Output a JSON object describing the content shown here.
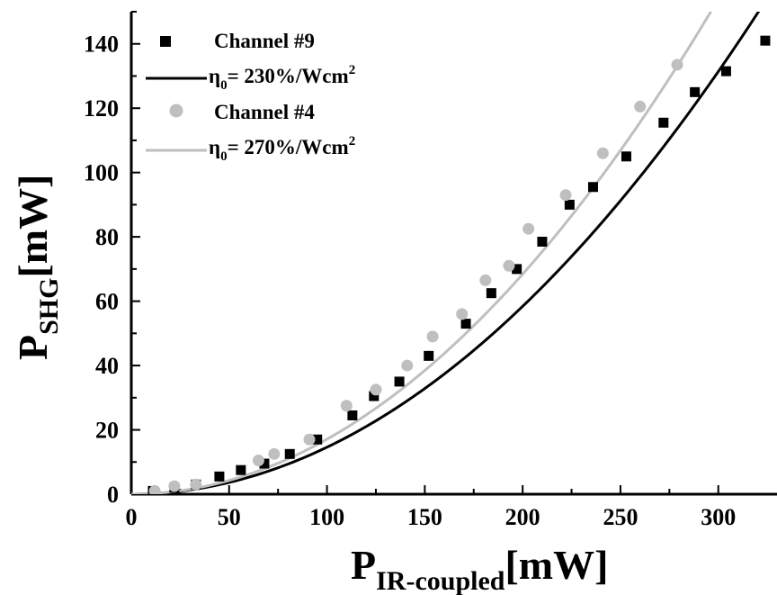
{
  "chart_data": {
    "type": "scatter",
    "xlabel": {
      "main": "P",
      "sub": "IR-coupled",
      "unit": "[mW]"
    },
    "ylabel": {
      "main": "P",
      "sub": "SHG",
      "unit": "[mW]"
    },
    "xlim": [
      0,
      330
    ],
    "ylim": [
      0,
      150
    ],
    "xticks": [
      0,
      50,
      100,
      150,
      200,
      250,
      300
    ],
    "yticks": [
      0,
      20,
      40,
      60,
      80,
      100,
      120,
      140
    ],
    "grid": false,
    "legend_position": "top-left",
    "series": [
      {
        "name": "Channel #9",
        "kind": "points",
        "marker": "square",
        "color": "#000000",
        "x": [
          11,
          22,
          33,
          45,
          56,
          68,
          81,
          95,
          113,
          124,
          137,
          152,
          171,
          184,
          197,
          210,
          224,
          236,
          253,
          272,
          288,
          304,
          324
        ],
        "y": [
          1,
          2,
          3,
          5.5,
          7.5,
          9.5,
          12.5,
          17,
          24.5,
          30.5,
          35,
          43,
          53,
          62.5,
          70,
          78.5,
          90,
          95.5,
          105,
          115.5,
          125,
          131.5,
          141
        ]
      },
      {
        "name": "η0= 230%/Wcm2",
        "legend_text": {
          "base": "η",
          "sub": "0",
          "body": "= 230%/Wcm",
          "sup": "2"
        },
        "kind": "fit",
        "color": "#000000",
        "coefficient": 0.00146
      },
      {
        "name": "Channel #4",
        "kind": "points",
        "marker": "circle",
        "color": "#bfbfbf",
        "x": [
          12,
          22,
          33,
          65,
          73,
          91,
          110,
          125,
          141,
          154,
          169,
          181,
          193,
          203,
          222,
          241,
          260,
          279
        ],
        "y": [
          1,
          2.5,
          3,
          10.5,
          12.5,
          17,
          27.5,
          32.5,
          40,
          49,
          56,
          66.5,
          71,
          82.5,
          93,
          106,
          120.5,
          133.5
        ]
      },
      {
        "name": "η0= 270%/Wcm2",
        "legend_text": {
          "base": "η",
          "sub": "0",
          "body": "= 270%/Wcm",
          "sup": "2"
        },
        "kind": "fit",
        "color": "#bfbfbf",
        "coefficient": 0.00171
      }
    ]
  }
}
